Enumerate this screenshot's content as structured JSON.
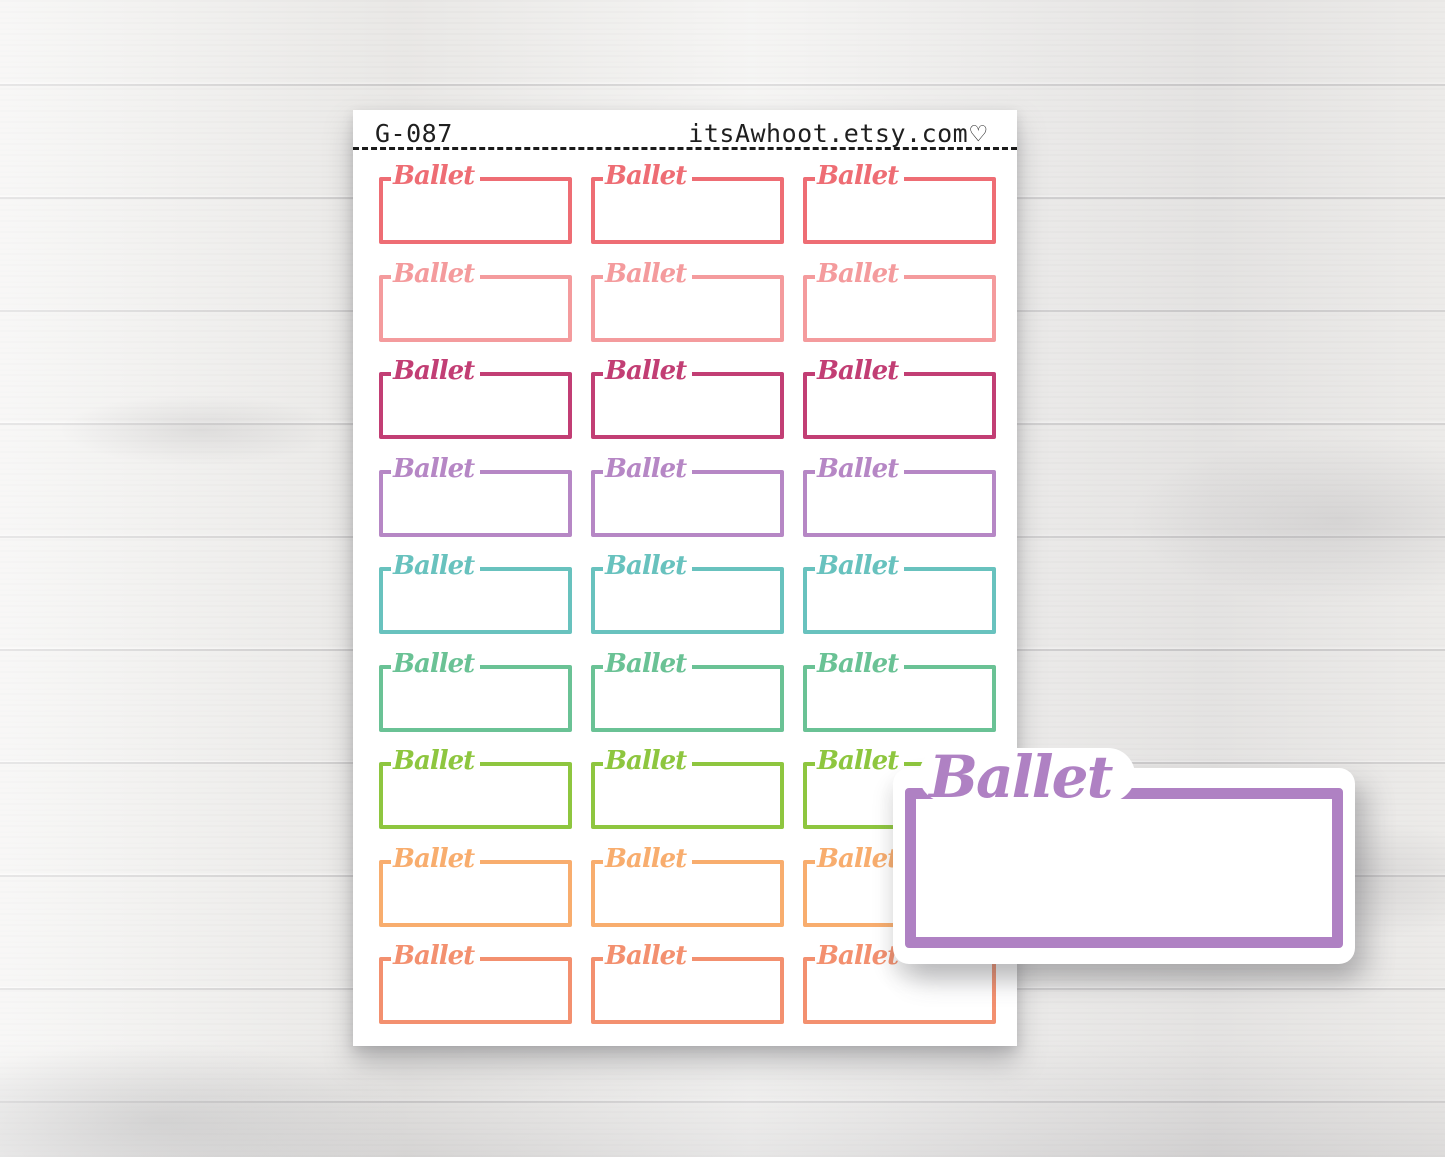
{
  "sheet": {
    "sku": "G-087",
    "shop_url": "itsAwhoot.etsy.com",
    "heart_symbol": "♡",
    "sticker_label": "Ballet",
    "columns": 3,
    "rows": [
      {
        "name": "coral-red",
        "color": "#ee6d74"
      },
      {
        "name": "light-pink",
        "color": "#f49b9d"
      },
      {
        "name": "berry",
        "color": "#c23e74"
      },
      {
        "name": "lavender",
        "color": "#b687c5"
      },
      {
        "name": "teal",
        "color": "#68c2be"
      },
      {
        "name": "jade-green",
        "color": "#6ac295"
      },
      {
        "name": "apple-green",
        "color": "#8ec63f"
      },
      {
        "name": "tangerine",
        "color": "#f8ad6e"
      },
      {
        "name": "salmon",
        "color": "#f3906f"
      }
    ]
  },
  "detail_sticker": {
    "label": "Ballet",
    "color": "#af81c3"
  }
}
